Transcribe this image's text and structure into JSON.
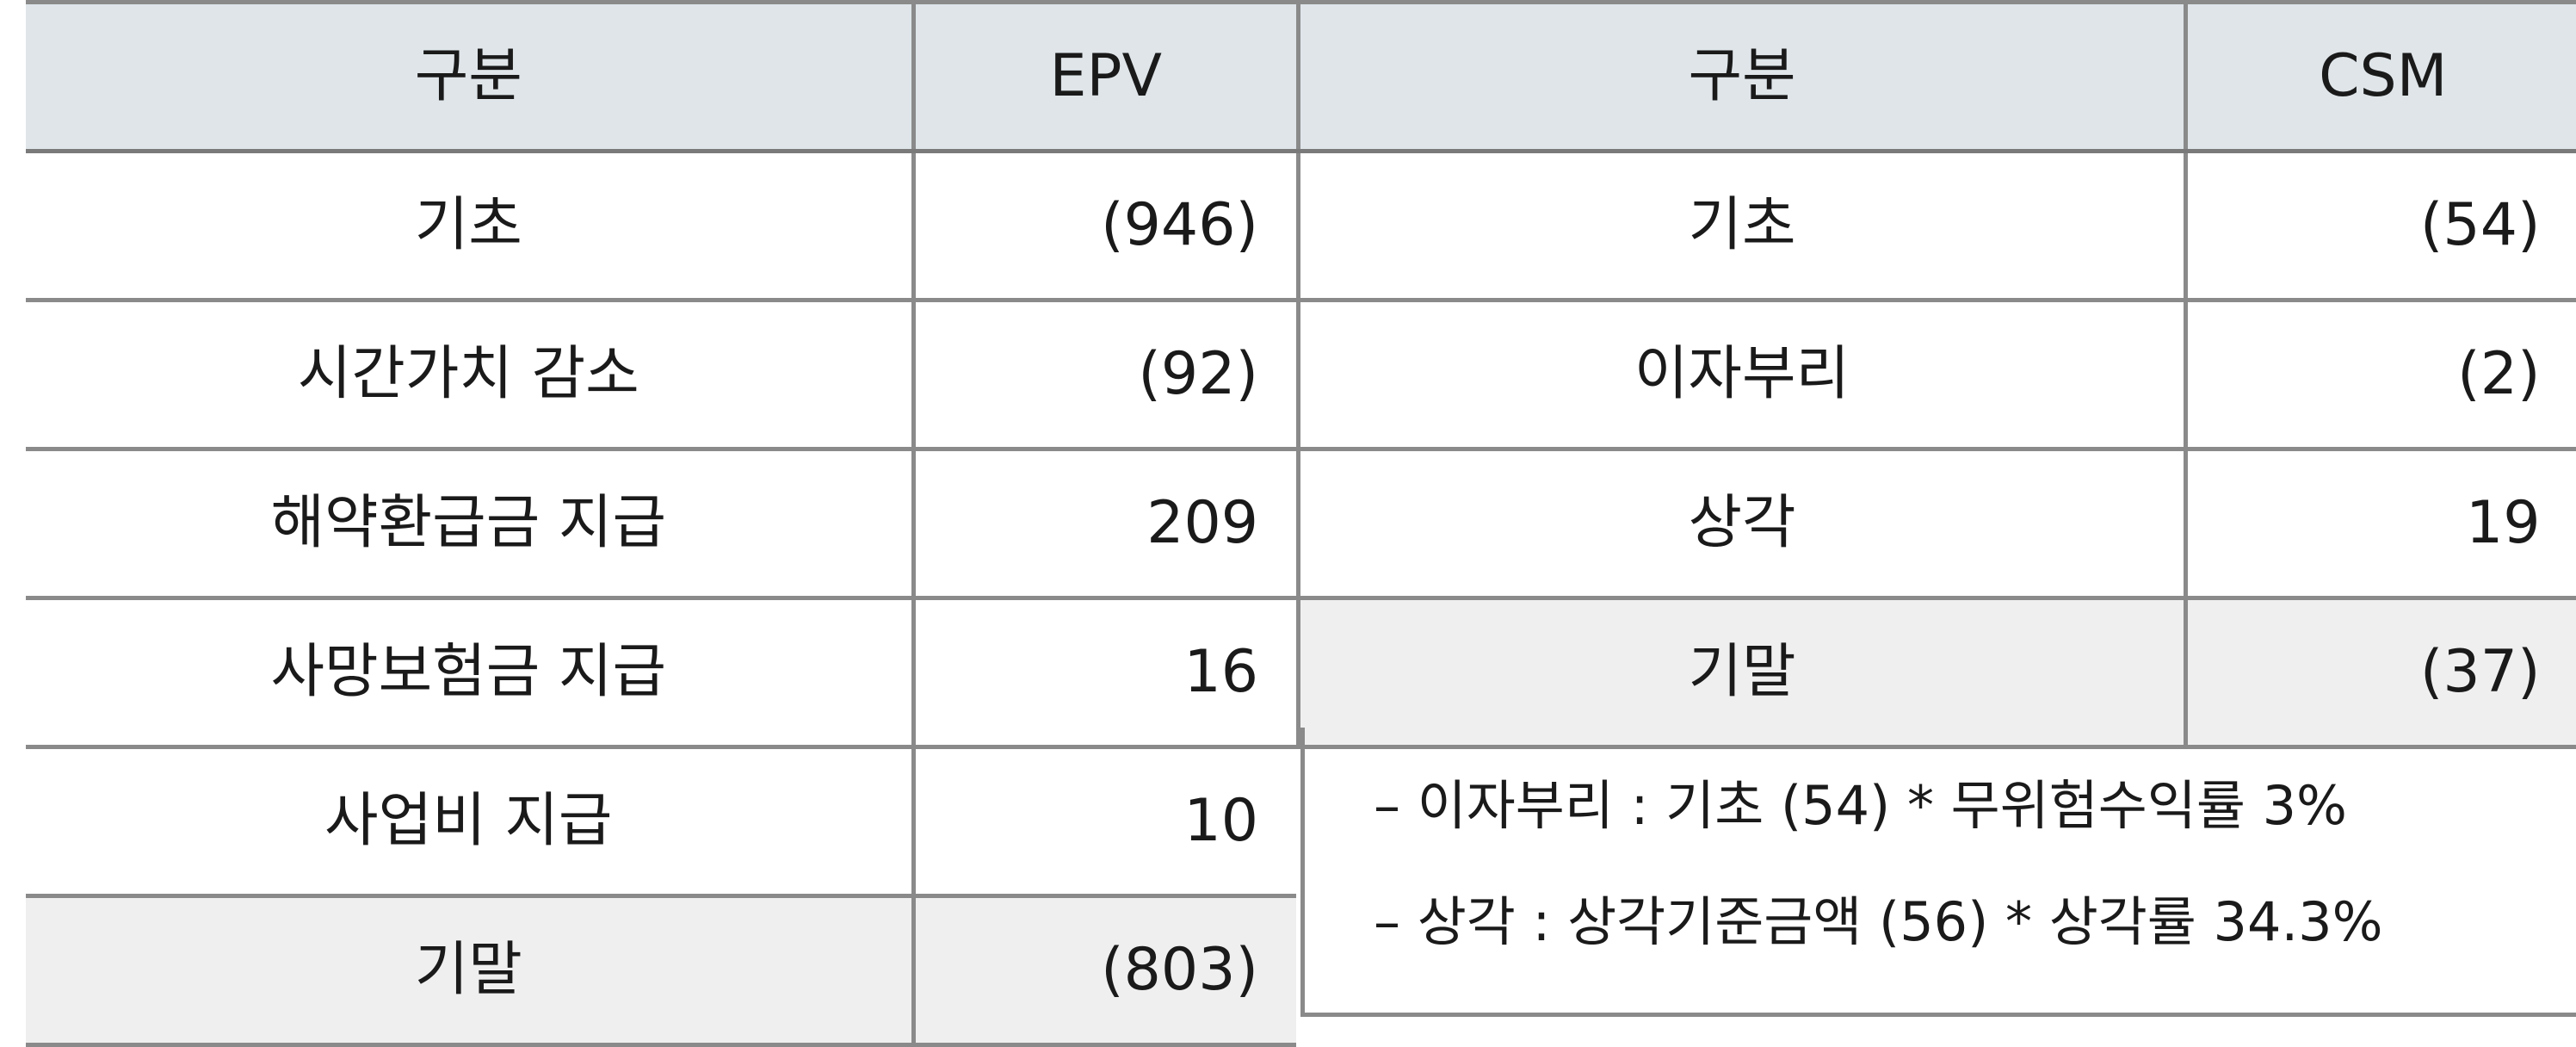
{
  "left_table": {
    "headers": [
      "구분",
      "EPV"
    ],
    "rows": [
      {
        "label": "기초",
        "value": "(946)"
      },
      {
        "label": "시간가치 감소",
        "value": "(92)"
      },
      {
        "label": "해약환급금 지급",
        "value": "209"
      },
      {
        "label": "사망보험금 지급",
        "value": "16"
      },
      {
        "label": "사업비 지급",
        "value": "10"
      },
      {
        "label": "기말",
        "value": "(803)"
      }
    ]
  },
  "right_table": {
    "headers": [
      "구분",
      "CSM"
    ],
    "rows": [
      {
        "label": "기초",
        "value": "(54)"
      },
      {
        "label": "이자부리",
        "value": "(2)"
      },
      {
        "label": "상각",
        "value": "19"
      },
      {
        "label": "기말",
        "value": "(37)"
      }
    ]
  },
  "notes": [
    "– 이자부리 : 기초 (54) * 무위험수익률 3%",
    "– 상각 : 상각기준금액 (56) * 상각률 34.3%"
  ],
  "colors": {
    "header_bg": "#dfe5e9",
    "total_row_bg": "#efefef",
    "border": "#8a8a8a"
  }
}
